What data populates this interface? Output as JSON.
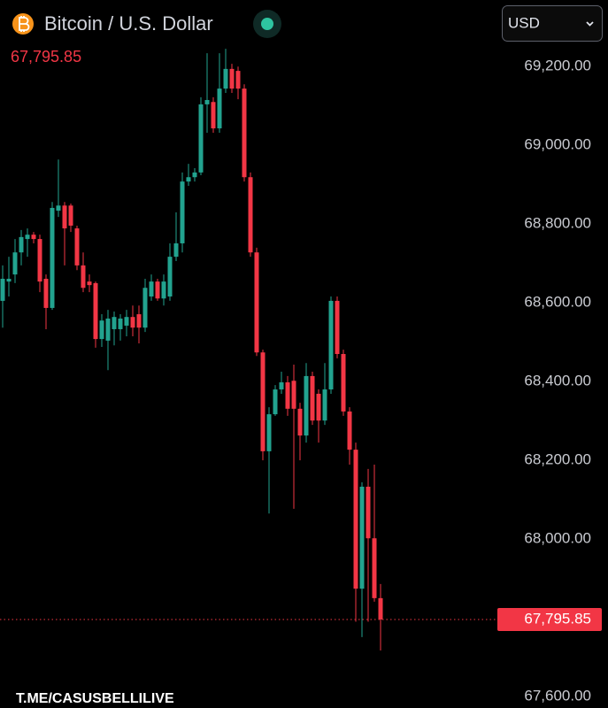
{
  "chart_data": {
    "type": "candlestick",
    "title": "Bitcoin / U.S. Dollar",
    "currency": "USD",
    "watermark": "T.ME/CASUSBELLILIVE",
    "current_price": {
      "value": 67795.85,
      "label": "67,795.85"
    },
    "up_color": "#22a38f",
    "down_color": "#f23645",
    "ylim": [
      67571,
      69369
    ],
    "yticks": [
      {
        "value": 69200,
        "label": "69,200.00"
      },
      {
        "value": 69000,
        "label": "69,000.00"
      },
      {
        "value": 68800,
        "label": "68,800.00"
      },
      {
        "value": 68600,
        "label": "68,600.00"
      },
      {
        "value": 68400,
        "label": "68,400.00"
      },
      {
        "value": 68200,
        "label": "68,200.00"
      },
      {
        "value": 68000,
        "label": "68,000.00"
      },
      {
        "value": 67600,
        "label": "67,600.00"
      }
    ],
    "open": [
      68605,
      68654,
      68672,
      68728,
      68762,
      68773,
      68762,
      68661,
      68587,
      68834,
      68847,
      68847,
      68789,
      68695,
      68654,
      68650,
      68508,
      68504,
      68533,
      68533,
      68542,
      68564,
      68571,
      68537,
      68616,
      68654,
      68611,
      68616,
      68717,
      68751,
      68908,
      68919,
      68931,
      69104,
      69110,
      69043,
      69144,
      69194,
      69189,
      69144,
      68919,
      68728,
      68474,
      68223,
      68317,
      68380,
      68398,
      68402,
      68331,
      68263,
      68414,
      68369,
      68301,
      68380,
      68605,
      68470,
      68324,
      68227,
      67874,
      68133,
      68002,
      67850
    ],
    "high": [
      68695,
      68717,
      68762,
      68785,
      68789,
      68780,
      68773,
      68672,
      68856,
      68964,
      68856,
      68852,
      68796,
      68728,
      68672,
      68654,
      68571,
      68582,
      68578,
      68571,
      68582,
      68593,
      68593,
      68661,
      68672,
      68661,
      68672,
      68751,
      68830,
      68931,
      68953,
      68942,
      69122,
      69234,
      69122,
      69234,
      69245,
      69207,
      69200,
      69155,
      68931,
      68740,
      68481,
      68335,
      68391,
      68425,
      68414,
      68443,
      68346,
      68447,
      68425,
      68380,
      68447,
      68616,
      68616,
      68481,
      68335,
      68245,
      68144,
      68178,
      68189,
      67886
    ],
    "low": [
      68537,
      68616,
      68650,
      68695,
      68717,
      68751,
      68627,
      68533,
      68582,
      68818,
      68695,
      68780,
      68683,
      68627,
      68627,
      68486,
      68488,
      68429,
      68492,
      68504,
      68515,
      68515,
      68497,
      68526,
      68605,
      68605,
      68593,
      68605,
      68706,
      68728,
      68897,
      68908,
      68924,
      69032,
      69032,
      69032,
      69133,
      69133,
      69117,
      68908,
      68717,
      68465,
      68200,
      68065,
      68313,
      68369,
      68313,
      68077,
      68200,
      68245,
      68290,
      68245,
      68290,
      68369,
      68459,
      68313,
      68189,
      67790,
      67751,
      67790,
      67841,
      67717
    ],
    "close": [
      68661,
      68661,
      68728,
      68767,
      68773,
      68762,
      68654,
      68587,
      68841,
      68847,
      68789,
      68796,
      68695,
      68638,
      68645,
      68508,
      68555,
      68560,
      68564,
      68560,
      68564,
      68537,
      68537,
      68638,
      68654,
      68611,
      68654,
      68717,
      68751,
      68908,
      68919,
      68931,
      69104,
      69115,
      69043,
      69144,
      69194,
      69144,
      69144,
      68919,
      68728,
      68474,
      68223,
      68317,
      68380,
      68398,
      68331,
      68331,
      68263,
      68414,
      68301,
      68301,
      68380,
      68605,
      68470,
      68324,
      68227,
      67874,
      68133,
      68002,
      67850,
      67795.85
    ]
  }
}
